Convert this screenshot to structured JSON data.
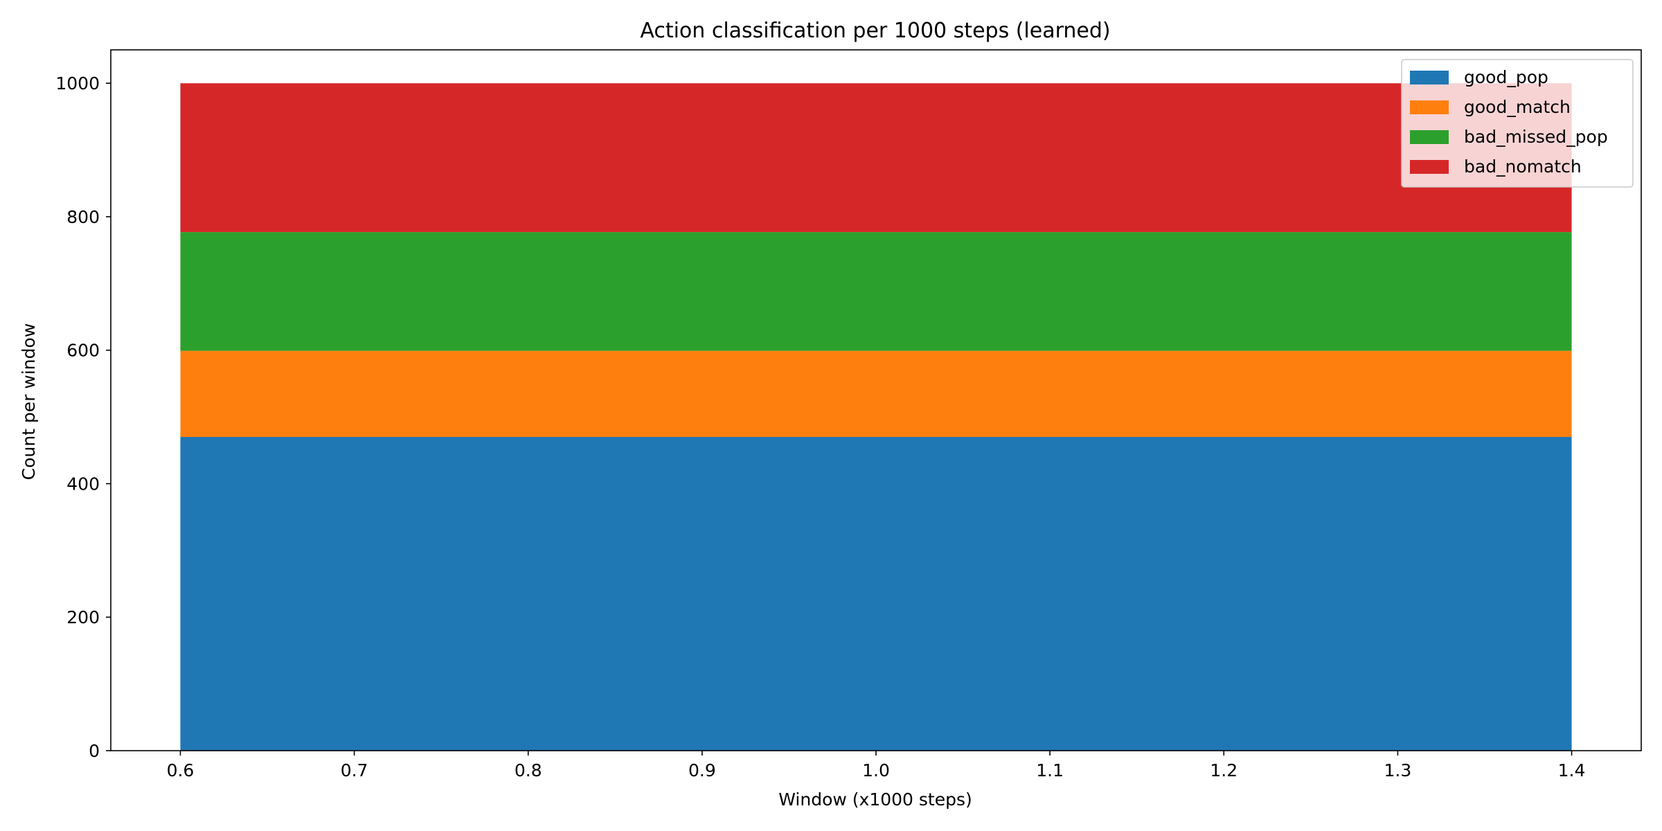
{
  "chart_data": {
    "type": "area",
    "stacked": true,
    "title": "Action classification per 1000 steps (learned)",
    "xlabel": "Window (x1000 steps)",
    "ylabel": "Count per window",
    "x": [
      0.6,
      1.4
    ],
    "xlim": [
      0.56,
      1.44
    ],
    "ylim": [
      0,
      1050
    ],
    "xticks": [
      "0.6",
      "0.7",
      "0.8",
      "0.9",
      "1.0",
      "1.1",
      "1.2",
      "1.3",
      "1.4"
    ],
    "xtick_values": [
      0.6,
      0.7,
      0.8,
      0.9,
      1.0,
      1.1,
      1.2,
      1.3,
      1.4
    ],
    "yticks": [
      "0",
      "200",
      "400",
      "600",
      "800",
      "1000"
    ],
    "ytick_values": [
      0,
      200,
      400,
      600,
      800,
      1000
    ],
    "grid": false,
    "legend_position": "top-right",
    "series": [
      {
        "name": "good_pop",
        "values": [
          470,
          470
        ],
        "color": "#1f77b4"
      },
      {
        "name": "good_match",
        "values": [
          129,
          129
        ],
        "color": "#ff7f0e"
      },
      {
        "name": "bad_missed_pop",
        "values": [
          178,
          178
        ],
        "color": "#2ca02c"
      },
      {
        "name": "bad_nomatch",
        "values": [
          223,
          223
        ],
        "color": "#d62728"
      }
    ]
  }
}
